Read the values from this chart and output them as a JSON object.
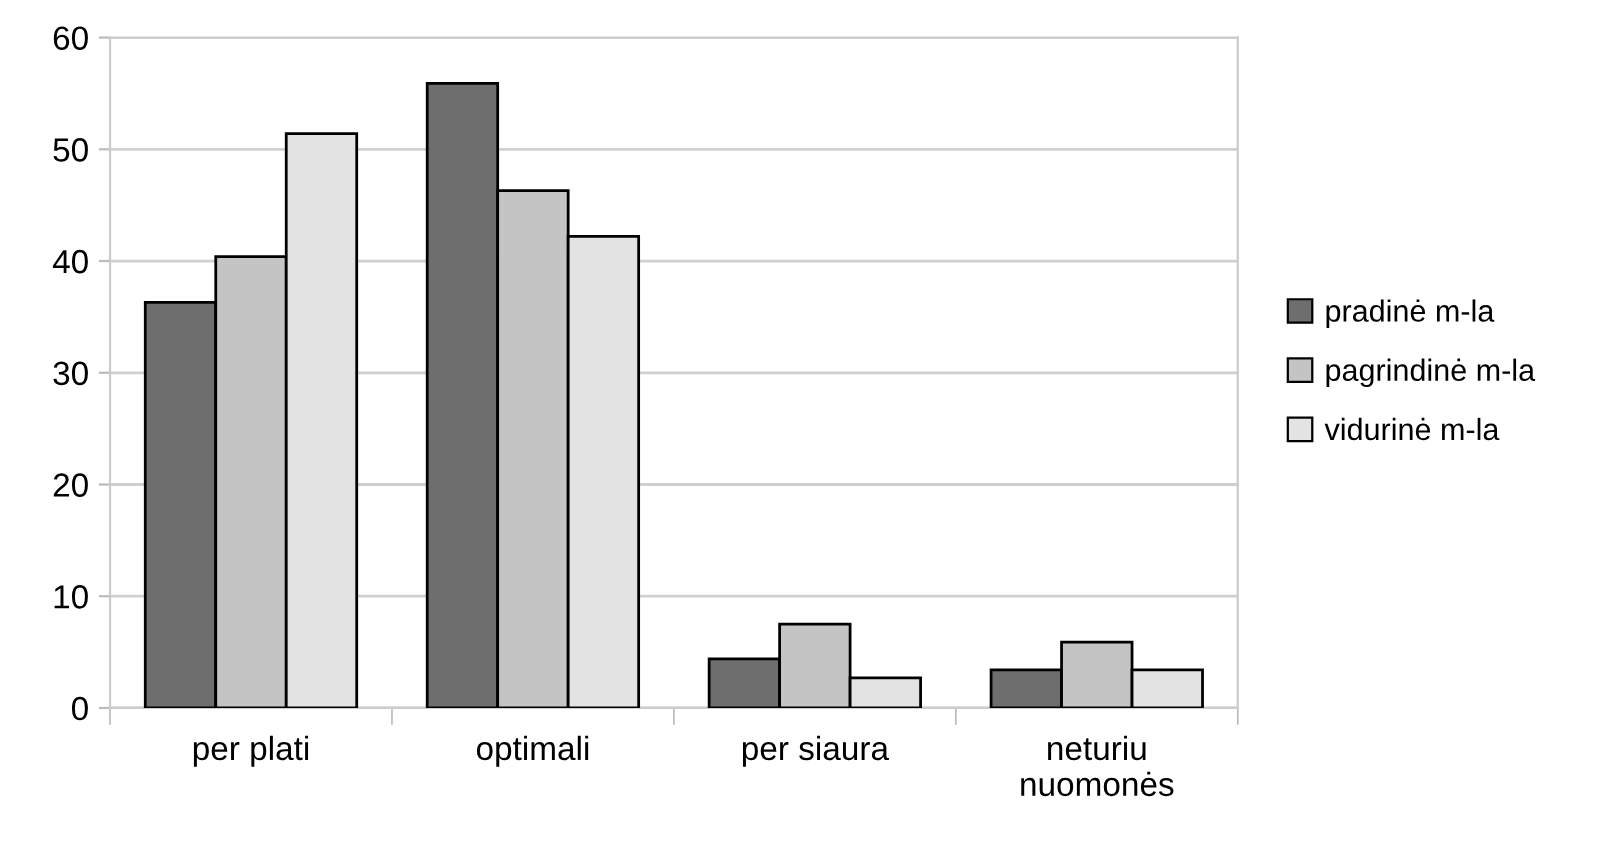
{
  "chart_data": {
    "type": "bar",
    "categories": [
      "per plati",
      "optimali",
      "per siaura",
      "neturiu\nnuomonės"
    ],
    "series": [
      {
        "name": "pradinė m-la",
        "color": "#6e6e6e",
        "values": [
          36.3,
          55.9,
          4.4,
          3.4
        ]
      },
      {
        "name": "pagrindinė m-la",
        "color": "#c4c4c4",
        "values": [
          40.4,
          46.3,
          7.5,
          5.9
        ]
      },
      {
        "name": "vidurinė m-la",
        "color": "#e3e3e3",
        "values": [
          51.4,
          42.2,
          2.7,
          3.4
        ]
      }
    ],
    "ylim": [
      0,
      60
    ],
    "yticks": [
      0,
      10,
      20,
      30,
      40,
      50,
      60
    ],
    "grid": "y",
    "legend": "right"
  }
}
